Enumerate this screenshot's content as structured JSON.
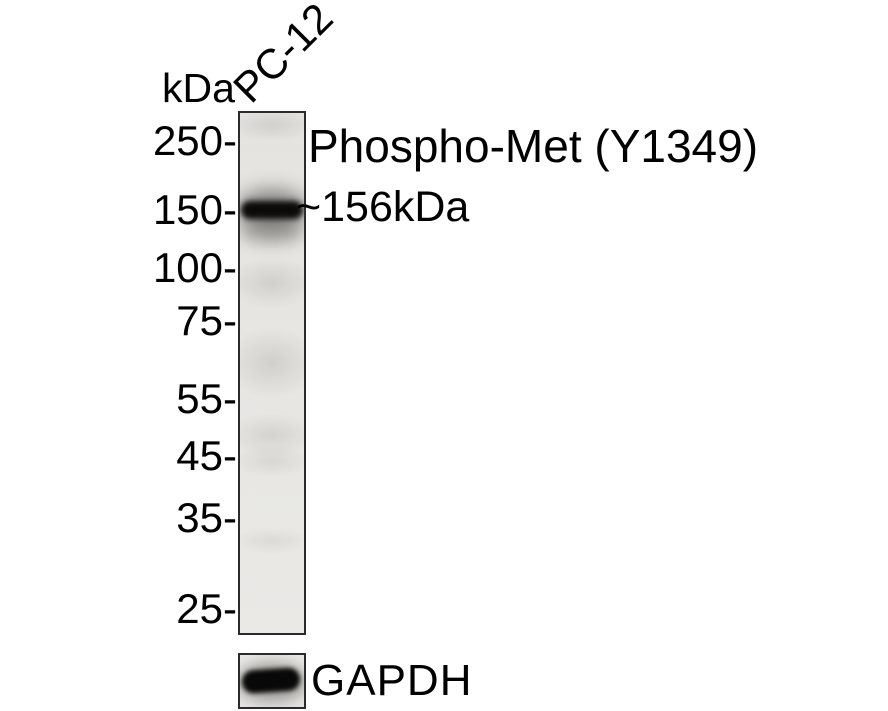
{
  "figure": {
    "units_label": "kDa",
    "sample_label": "PC-12",
    "target_label": "Phospho-Met (Y1349)",
    "band_annotation": "~156kDa",
    "loading_control_label": "GAPDH",
    "ladder_markers": [
      {
        "label": "250-",
        "kda": 250
      },
      {
        "label": "150-",
        "kda": 150
      },
      {
        "label": "100-",
        "kda": 100
      },
      {
        "label": "75-",
        "kda": 75
      },
      {
        "label": "55-",
        "kda": 55
      },
      {
        "label": "45-",
        "kda": 45
      },
      {
        "label": "35-",
        "kda": 35
      },
      {
        "label": "25-",
        "kda": 25
      }
    ],
    "bands": [
      {
        "lane": "PC-12",
        "target": "Phospho-Met (Y1349)",
        "approx_size": "~156kDa",
        "position_between_markers": "at 150 kDa mark",
        "intensity": "strong"
      },
      {
        "lane": "PC-12",
        "target": "GAPDH",
        "intensity": "strong"
      }
    ],
    "colors": {
      "text": "#000000",
      "blot_background": "#e7e6e3",
      "band": "#0a0a0a",
      "border": "#2b2b2b",
      "page_background": "#ffffff"
    }
  }
}
